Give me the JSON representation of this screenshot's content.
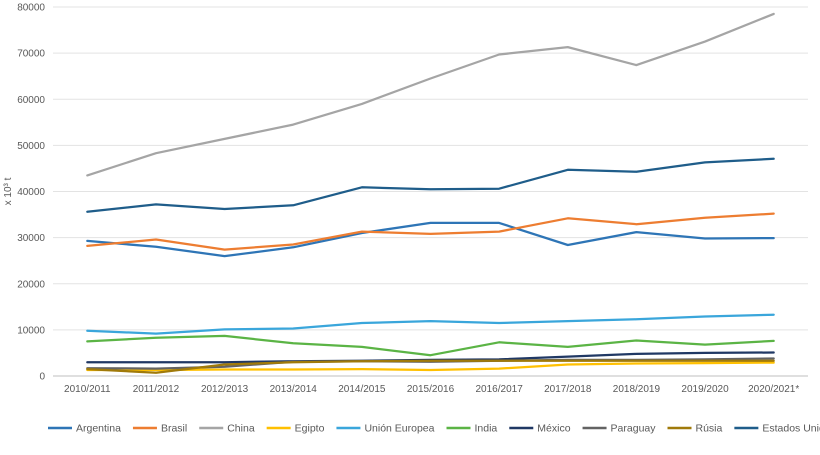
{
  "chart_data": {
    "type": "line",
    "title": "",
    "xlabel": "",
    "ylabel": "x 10³ t",
    "ylim": [
      0,
      80000
    ],
    "yticks": [
      0,
      10000,
      20000,
      30000,
      40000,
      50000,
      60000,
      70000,
      80000
    ],
    "ytick_labels": [
      "0",
      "10000",
      "20000",
      "30000",
      "40000",
      "50000",
      "60000",
      "70000",
      "80000"
    ],
    "grid": true,
    "legend_position": "bottom",
    "categories": [
      "2010/2011",
      "2011/2012",
      "2012/2013",
      "2013/2014",
      "2014/2015",
      "2015/2016",
      "2016/2017",
      "2017/2018",
      "2018/2019",
      "2019/2020",
      "2020/2021*"
    ],
    "series": [
      {
        "name": "Argentina",
        "color": "#2E75B6",
        "values": [
          29300,
          28000,
          26000,
          27900,
          31000,
          33200,
          33200,
          28400,
          31200,
          29800,
          29900
        ]
      },
      {
        "name": "Brasil",
        "color": "#ED7D31",
        "values": [
          28200,
          29600,
          27400,
          28500,
          31300,
          30800,
          31300,
          34200,
          32900,
          34300,
          35200
        ]
      },
      {
        "name": "China",
        "color": "#A5A5A5",
        "values": [
          43500,
          48300,
          51400,
          54500,
          59000,
          64500,
          69700,
          71300,
          67400,
          72500,
          78500
        ]
      },
      {
        "name": "Egipto",
        "color": "#FFC000",
        "values": [
          1300,
          1300,
          1400,
          1400,
          1500,
          1300,
          1600,
          2500,
          2700,
          2800,
          2900
        ]
      },
      {
        "name": "Unión Europea",
        "color": "#3AA6DB",
        "values": [
          9800,
          9200,
          10100,
          10300,
          11500,
          11900,
          11500,
          11900,
          12300,
          12900,
          13300
        ]
      },
      {
        "name": "India",
        "color": "#5BB445",
        "values": [
          7500,
          8300,
          8700,
          7100,
          6300,
          4500,
          7300,
          6300,
          7700,
          6800,
          7600
        ]
      },
      {
        "name": "México",
        "color": "#203864",
        "values": [
          3000,
          3000,
          3000,
          3200,
          3300,
          3500,
          3600,
          4200,
          4800,
          5000,
          5100
        ]
      },
      {
        "name": "Paraguay",
        "color": "#636363",
        "values": [
          1700,
          1600,
          2000,
          3100,
          3200,
          3100,
          3300,
          3500,
          3500,
          3600,
          3800
        ]
      },
      {
        "name": "Rúsia",
        "color": "#A07A0A",
        "values": [
          1500,
          700,
          2500,
          3000,
          3200,
          3300,
          3300,
          3300,
          3300,
          3300,
          3300
        ]
      },
      {
        "name": "Estados Unidos",
        "color": "#1F5D8A",
        "values": [
          35600,
          37200,
          36200,
          37000,
          40900,
          40500,
          40600,
          44700,
          44300,
          46300,
          47100
        ]
      }
    ]
  }
}
